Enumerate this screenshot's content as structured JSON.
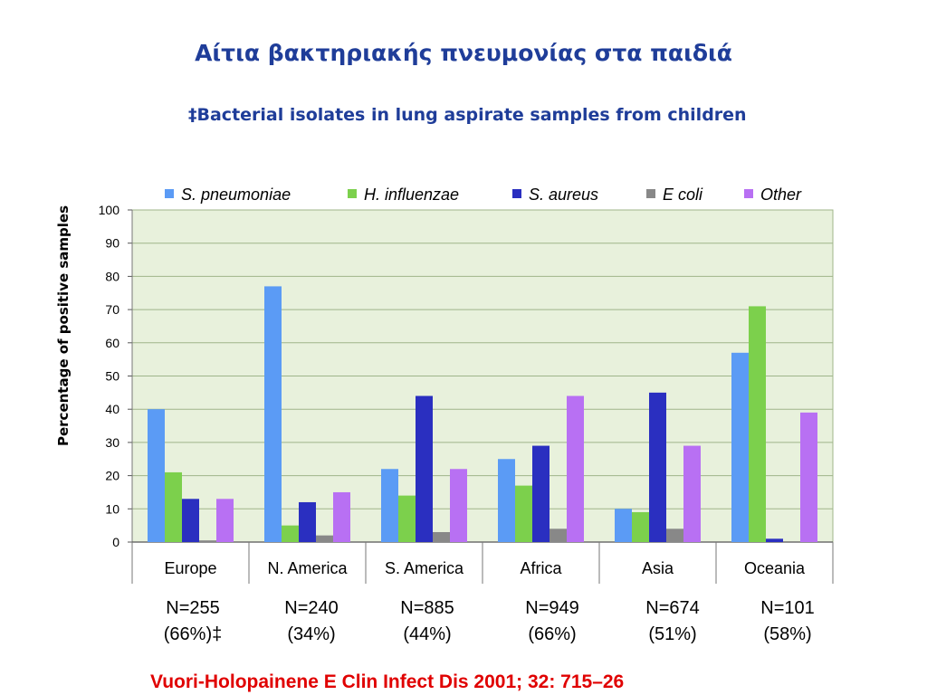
{
  "slide": {
    "title": "Αίτια βακτηριακής πνευμονίας στα παιδιά",
    "subtitle": "‡Bacterial isolates in lung aspirate samples from children",
    "citation": "Vuori-Holopainene E Clin Infect Dis 2001; 32: 715–26"
  },
  "sample_labels": [
    {
      "n": "N=255",
      "pct": "(66%)‡"
    },
    {
      "n": "N=240",
      "pct": "(34%)"
    },
    {
      "n": "N=885",
      "pct": "(44%)"
    },
    {
      "n": "N=949",
      "pct": "(66%)"
    },
    {
      "n": "N=674",
      "pct": "(51%)"
    },
    {
      "n": "N=101",
      "pct": "(58%)"
    }
  ],
  "chart_data": {
    "type": "bar",
    "ylabel": "Percentage of positive samples",
    "xlabel": "",
    "ylim": [
      0,
      100
    ],
    "yticks": [
      0,
      10,
      20,
      30,
      40,
      50,
      60,
      70,
      80,
      90,
      100
    ],
    "grid": true,
    "legend_position": "top",
    "plot_background": "#e8f1dc",
    "categories": [
      "Europe",
      "N. America",
      "S. America",
      "Africa",
      "Asia",
      "Oceania"
    ],
    "series": [
      {
        "name": "S. pneumoniae",
        "color": "#5b9bf5",
        "values": [
          40,
          77,
          22,
          25,
          10,
          57
        ]
      },
      {
        "name": "H. influenzae",
        "color": "#7cd04c",
        "values": [
          21,
          5,
          14,
          17,
          9,
          71
        ]
      },
      {
        "name": "S. aureus",
        "color": "#2a2fc0",
        "values": [
          13,
          12,
          44,
          29,
          45,
          1
        ]
      },
      {
        "name": "E coli",
        "color": "#888888",
        "values": [
          0.5,
          2,
          3,
          4,
          4,
          0
        ]
      },
      {
        "name": "Other",
        "color": "#b870f3",
        "values": [
          13,
          15,
          22,
          44,
          29,
          39
        ]
      }
    ]
  }
}
